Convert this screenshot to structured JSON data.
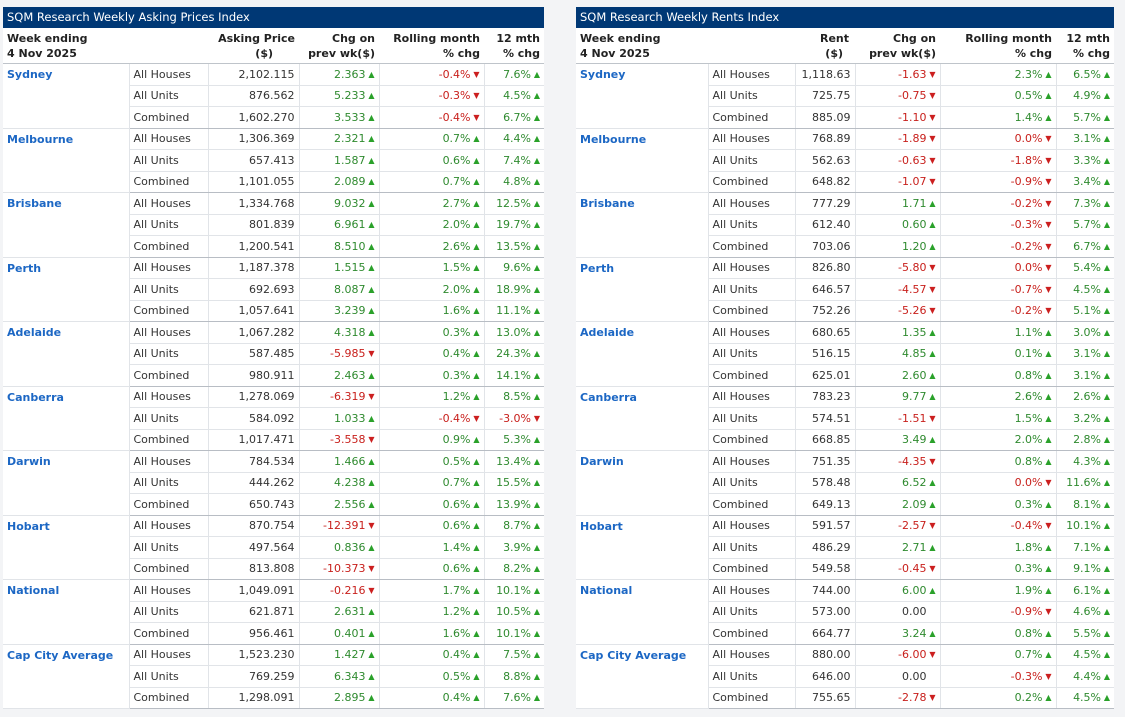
{
  "tables": [
    {
      "id": "asking",
      "title": "SQM Research Weekly Asking Prices Index",
      "headers": {
        "week_line1": "Week ending",
        "week_line2": "4 Nov 2025",
        "value_line1": "Asking Price",
        "value_line2": "($)",
        "chg_line1": "Chg on",
        "chg_line2": "prev wk($)",
        "roll_line1": "Rolling month",
        "roll_line2": "% chg",
        "yr_line1": "12 mth",
        "yr_line2": "% chg"
      },
      "regions": [
        {
          "name": "Sydney",
          "rows": [
            {
              "type": "All Houses",
              "value": "2,102.115",
              "chg": "2.363",
              "chg_dir": "up",
              "roll": "-0.4%",
              "roll_dir": "down",
              "yr": "7.6%",
              "yr_dir": "up"
            },
            {
              "type": "All Units",
              "value": "876.562",
              "chg": "5.233",
              "chg_dir": "up",
              "roll": "-0.3%",
              "roll_dir": "down",
              "yr": "4.5%",
              "yr_dir": "up"
            },
            {
              "type": "Combined",
              "value": "1,602.270",
              "chg": "3.533",
              "chg_dir": "up",
              "roll": "-0.4%",
              "roll_dir": "down",
              "yr": "6.7%",
              "yr_dir": "up"
            }
          ]
        },
        {
          "name": "Melbourne",
          "rows": [
            {
              "type": "All Houses",
              "value": "1,306.369",
              "chg": "2.321",
              "chg_dir": "up",
              "roll": "0.7%",
              "roll_dir": "up",
              "yr": "4.4%",
              "yr_dir": "up"
            },
            {
              "type": "All Units",
              "value": "657.413",
              "chg": "1.587",
              "chg_dir": "up",
              "roll": "0.6%",
              "roll_dir": "up",
              "yr": "7.4%",
              "yr_dir": "up"
            },
            {
              "type": "Combined",
              "value": "1,101.055",
              "chg": "2.089",
              "chg_dir": "up",
              "roll": "0.7%",
              "roll_dir": "up",
              "yr": "4.8%",
              "yr_dir": "up"
            }
          ]
        },
        {
          "name": "Brisbane",
          "rows": [
            {
              "type": "All Houses",
              "value": "1,334.768",
              "chg": "9.032",
              "chg_dir": "up",
              "roll": "2.7%",
              "roll_dir": "up",
              "yr": "12.5%",
              "yr_dir": "up"
            },
            {
              "type": "All Units",
              "value": "801.839",
              "chg": "6.961",
              "chg_dir": "up",
              "roll": "2.0%",
              "roll_dir": "up",
              "yr": "19.7%",
              "yr_dir": "up"
            },
            {
              "type": "Combined",
              "value": "1,200.541",
              "chg": "8.510",
              "chg_dir": "up",
              "roll": "2.6%",
              "roll_dir": "up",
              "yr": "13.5%",
              "yr_dir": "up"
            }
          ]
        },
        {
          "name": "Perth",
          "rows": [
            {
              "type": "All Houses",
              "value": "1,187.378",
              "chg": "1.515",
              "chg_dir": "up",
              "roll": "1.5%",
              "roll_dir": "up",
              "yr": "9.6%",
              "yr_dir": "up"
            },
            {
              "type": "All Units",
              "value": "692.693",
              "chg": "8.087",
              "chg_dir": "up",
              "roll": "2.0%",
              "roll_dir": "up",
              "yr": "18.9%",
              "yr_dir": "up"
            },
            {
              "type": "Combined",
              "value": "1,057.641",
              "chg": "3.239",
              "chg_dir": "up",
              "roll": "1.6%",
              "roll_dir": "up",
              "yr": "11.1%",
              "yr_dir": "up"
            }
          ]
        },
        {
          "name": "Adelaide",
          "rows": [
            {
              "type": "All Houses",
              "value": "1,067.282",
              "chg": "4.318",
              "chg_dir": "up",
              "roll": "0.3%",
              "roll_dir": "up",
              "yr": "13.0%",
              "yr_dir": "up"
            },
            {
              "type": "All Units",
              "value": "587.485",
              "chg": "-5.985",
              "chg_dir": "down",
              "roll": "0.4%",
              "roll_dir": "up",
              "yr": "24.3%",
              "yr_dir": "up"
            },
            {
              "type": "Combined",
              "value": "980.911",
              "chg": "2.463",
              "chg_dir": "up",
              "roll": "0.3%",
              "roll_dir": "up",
              "yr": "14.1%",
              "yr_dir": "up"
            }
          ]
        },
        {
          "name": "Canberra",
          "rows": [
            {
              "type": "All Houses",
              "value": "1,278.069",
              "chg": "-6.319",
              "chg_dir": "down",
              "roll": "1.2%",
              "roll_dir": "up",
              "yr": "8.5%",
              "yr_dir": "up"
            },
            {
              "type": "All Units",
              "value": "584.092",
              "chg": "1.033",
              "chg_dir": "up",
              "roll": "-0.4%",
              "roll_dir": "down",
              "yr": "-3.0%",
              "yr_dir": "down"
            },
            {
              "type": "Combined",
              "value": "1,017.471",
              "chg": "-3.558",
              "chg_dir": "down",
              "roll": "0.9%",
              "roll_dir": "up",
              "yr": "5.3%",
              "yr_dir": "up"
            }
          ]
        },
        {
          "name": "Darwin",
          "rows": [
            {
              "type": "All Houses",
              "value": "784.534",
              "chg": "1.466",
              "chg_dir": "up",
              "roll": "0.5%",
              "roll_dir": "up",
              "yr": "13.4%",
              "yr_dir": "up"
            },
            {
              "type": "All Units",
              "value": "444.262",
              "chg": "4.238",
              "chg_dir": "up",
              "roll": "0.7%",
              "roll_dir": "up",
              "yr": "15.5%",
              "yr_dir": "up"
            },
            {
              "type": "Combined",
              "value": "650.743",
              "chg": "2.556",
              "chg_dir": "up",
              "roll": "0.6%",
              "roll_dir": "up",
              "yr": "13.9%",
              "yr_dir": "up"
            }
          ]
        },
        {
          "name": "Hobart",
          "rows": [
            {
              "type": "All Houses",
              "value": "870.754",
              "chg": "-12.391",
              "chg_dir": "down",
              "roll": "0.6%",
              "roll_dir": "up",
              "yr": "8.7%",
              "yr_dir": "up"
            },
            {
              "type": "All Units",
              "value": "497.564",
              "chg": "0.836",
              "chg_dir": "up",
              "roll": "1.4%",
              "roll_dir": "up",
              "yr": "3.9%",
              "yr_dir": "up"
            },
            {
              "type": "Combined",
              "value": "813.808",
              "chg": "-10.373",
              "chg_dir": "down",
              "roll": "0.6%",
              "roll_dir": "up",
              "yr": "8.2%",
              "yr_dir": "up"
            }
          ]
        },
        {
          "name": "National",
          "rows": [
            {
              "type": "All Houses",
              "value": "1,049.091",
              "chg": "-0.216",
              "chg_dir": "down",
              "roll": "1.7%",
              "roll_dir": "up",
              "yr": "10.1%",
              "yr_dir": "up"
            },
            {
              "type": "All Units",
              "value": "621.871",
              "chg": "2.631",
              "chg_dir": "up",
              "roll": "1.2%",
              "roll_dir": "up",
              "yr": "10.5%",
              "yr_dir": "up"
            },
            {
              "type": "Combined",
              "value": "956.461",
              "chg": "0.401",
              "chg_dir": "up",
              "roll": "1.6%",
              "roll_dir": "up",
              "yr": "10.1%",
              "yr_dir": "up"
            }
          ]
        },
        {
          "name": "Cap City Average",
          "rows": [
            {
              "type": "All Houses",
              "value": "1,523.230",
              "chg": "1.427",
              "chg_dir": "up",
              "roll": "0.4%",
              "roll_dir": "up",
              "yr": "7.5%",
              "yr_dir": "up"
            },
            {
              "type": "All Units",
              "value": "769.259",
              "chg": "6.343",
              "chg_dir": "up",
              "roll": "0.5%",
              "roll_dir": "up",
              "yr": "8.8%",
              "yr_dir": "up"
            },
            {
              "type": "Combined",
              "value": "1,298.091",
              "chg": "2.895",
              "chg_dir": "up",
              "roll": "0.4%",
              "roll_dir": "up",
              "yr": "7.6%",
              "yr_dir": "up"
            }
          ]
        }
      ]
    },
    {
      "id": "rents",
      "title": "SQM Research Weekly Rents Index",
      "headers": {
        "week_line1": "Week ending",
        "week_line2": "4 Nov 2025",
        "value_line1": "Rent",
        "value_line2": "($)",
        "chg_line1": "Chg on",
        "chg_line2": "prev wk($)",
        "roll_line1": "Rolling month",
        "roll_line2": "% chg",
        "yr_line1": "12 mth",
        "yr_line2": "% chg"
      },
      "regions": [
        {
          "name": "Sydney",
          "rows": [
            {
              "type": "All Houses",
              "value": "1,118.63",
              "chg": "-1.63",
              "chg_dir": "down",
              "roll": "2.3%",
              "roll_dir": "up",
              "yr": "6.5%",
              "yr_dir": "up"
            },
            {
              "type": "All Units",
              "value": "725.75",
              "chg": "-0.75",
              "chg_dir": "down",
              "roll": "0.5%",
              "roll_dir": "up",
              "yr": "4.9%",
              "yr_dir": "up"
            },
            {
              "type": "Combined",
              "value": "885.09",
              "chg": "-1.10",
              "chg_dir": "down",
              "roll": "1.4%",
              "roll_dir": "up",
              "yr": "5.7%",
              "yr_dir": "up"
            }
          ]
        },
        {
          "name": "Melbourne",
          "rows": [
            {
              "type": "All Houses",
              "value": "768.89",
              "chg": "-1.89",
              "chg_dir": "down",
              "roll": "0.0%",
              "roll_dir": "down",
              "yr": "3.1%",
              "yr_dir": "up"
            },
            {
              "type": "All Units",
              "value": "562.63",
              "chg": "-0.63",
              "chg_dir": "down",
              "roll": "-1.8%",
              "roll_dir": "down",
              "yr": "3.3%",
              "yr_dir": "up"
            },
            {
              "type": "Combined",
              "value": "648.82",
              "chg": "-1.07",
              "chg_dir": "down",
              "roll": "-0.9%",
              "roll_dir": "down",
              "yr": "3.4%",
              "yr_dir": "up"
            }
          ]
        },
        {
          "name": "Brisbane",
          "rows": [
            {
              "type": "All Houses",
              "value": "777.29",
              "chg": "1.71",
              "chg_dir": "up",
              "roll": "-0.2%",
              "roll_dir": "down",
              "yr": "7.3%",
              "yr_dir": "up"
            },
            {
              "type": "All Units",
              "value": "612.40",
              "chg": "0.60",
              "chg_dir": "up",
              "roll": "-0.3%",
              "roll_dir": "down",
              "yr": "5.7%",
              "yr_dir": "up"
            },
            {
              "type": "Combined",
              "value": "703.06",
              "chg": "1.20",
              "chg_dir": "up",
              "roll": "-0.2%",
              "roll_dir": "down",
              "yr": "6.7%",
              "yr_dir": "up"
            }
          ]
        },
        {
          "name": "Perth",
          "rows": [
            {
              "type": "All Houses",
              "value": "826.80",
              "chg": "-5.80",
              "chg_dir": "down",
              "roll": "0.0%",
              "roll_dir": "down",
              "yr": "5.4%",
              "yr_dir": "up"
            },
            {
              "type": "All Units",
              "value": "646.57",
              "chg": "-4.57",
              "chg_dir": "down",
              "roll": "-0.7%",
              "roll_dir": "down",
              "yr": "4.5%",
              "yr_dir": "up"
            },
            {
              "type": "Combined",
              "value": "752.26",
              "chg": "-5.26",
              "chg_dir": "down",
              "roll": "-0.2%",
              "roll_dir": "down",
              "yr": "5.1%",
              "yr_dir": "up"
            }
          ]
        },
        {
          "name": "Adelaide",
          "rows": [
            {
              "type": "All Houses",
              "value": "680.65",
              "chg": "1.35",
              "chg_dir": "up",
              "roll": "1.1%",
              "roll_dir": "up",
              "yr": "3.0%",
              "yr_dir": "up"
            },
            {
              "type": "All Units",
              "value": "516.15",
              "chg": "4.85",
              "chg_dir": "up",
              "roll": "0.1%",
              "roll_dir": "up",
              "yr": "3.1%",
              "yr_dir": "up"
            },
            {
              "type": "Combined",
              "value": "625.01",
              "chg": "2.60",
              "chg_dir": "up",
              "roll": "0.8%",
              "roll_dir": "up",
              "yr": "3.1%",
              "yr_dir": "up"
            }
          ]
        },
        {
          "name": "Canberra",
          "rows": [
            {
              "type": "All Houses",
              "value": "783.23",
              "chg": "9.77",
              "chg_dir": "up",
              "roll": "2.6%",
              "roll_dir": "up",
              "yr": "2.6%",
              "yr_dir": "up"
            },
            {
              "type": "All Units",
              "value": "574.51",
              "chg": "-1.51",
              "chg_dir": "down",
              "roll": "1.5%",
              "roll_dir": "up",
              "yr": "3.2%",
              "yr_dir": "up"
            },
            {
              "type": "Combined",
              "value": "668.85",
              "chg": "3.49",
              "chg_dir": "up",
              "roll": "2.0%",
              "roll_dir": "up",
              "yr": "2.8%",
              "yr_dir": "up"
            }
          ]
        },
        {
          "name": "Darwin",
          "rows": [
            {
              "type": "All Houses",
              "value": "751.35",
              "chg": "-4.35",
              "chg_dir": "down",
              "roll": "0.8%",
              "roll_dir": "up",
              "yr": "4.3%",
              "yr_dir": "up"
            },
            {
              "type": "All Units",
              "value": "578.48",
              "chg": "6.52",
              "chg_dir": "up",
              "roll": "0.0%",
              "roll_dir": "down",
              "yr": "11.6%",
              "yr_dir": "up"
            },
            {
              "type": "Combined",
              "value": "649.13",
              "chg": "2.09",
              "chg_dir": "up",
              "roll": "0.3%",
              "roll_dir": "up",
              "yr": "8.1%",
              "yr_dir": "up"
            }
          ]
        },
        {
          "name": "Hobart",
          "rows": [
            {
              "type": "All Houses",
              "value": "591.57",
              "chg": "-2.57",
              "chg_dir": "down",
              "roll": "-0.4%",
              "roll_dir": "down",
              "yr": "10.1%",
              "yr_dir": "up"
            },
            {
              "type": "All Units",
              "value": "486.29",
              "chg": "2.71",
              "chg_dir": "up",
              "roll": "1.8%",
              "roll_dir": "up",
              "yr": "7.1%",
              "yr_dir": "up"
            },
            {
              "type": "Combined",
              "value": "549.58",
              "chg": "-0.45",
              "chg_dir": "down",
              "roll": "0.3%",
              "roll_dir": "up",
              "yr": "9.1%",
              "yr_dir": "up"
            }
          ]
        },
        {
          "name": "National",
          "rows": [
            {
              "type": "All Houses",
              "value": "744.00",
              "chg": "6.00",
              "chg_dir": "up",
              "roll": "1.9%",
              "roll_dir": "up",
              "yr": "6.1%",
              "yr_dir": "up"
            },
            {
              "type": "All Units",
              "value": "573.00",
              "chg": "0.00",
              "chg_dir": "none",
              "roll": "-0.9%",
              "roll_dir": "down",
              "yr": "4.6%",
              "yr_dir": "up"
            },
            {
              "type": "Combined",
              "value": "664.77",
              "chg": "3.24",
              "chg_dir": "up",
              "roll": "0.8%",
              "roll_dir": "up",
              "yr": "5.5%",
              "yr_dir": "up"
            }
          ]
        },
        {
          "name": "Cap City Average",
          "rows": [
            {
              "type": "All Houses",
              "value": "880.00",
              "chg": "-6.00",
              "chg_dir": "down",
              "roll": "0.7%",
              "roll_dir": "up",
              "yr": "4.5%",
              "yr_dir": "up"
            },
            {
              "type": "All Units",
              "value": "646.00",
              "chg": "0.00",
              "chg_dir": "none",
              "roll": "-0.3%",
              "roll_dir": "down",
              "yr": "4.4%",
              "yr_dir": "up"
            },
            {
              "type": "Combined",
              "value": "755.65",
              "chg": "-2.78",
              "chg_dir": "down",
              "roll": "0.2%",
              "roll_dir": "up",
              "yr": "4.5%",
              "yr_dir": "up"
            }
          ]
        }
      ]
    }
  ]
}
